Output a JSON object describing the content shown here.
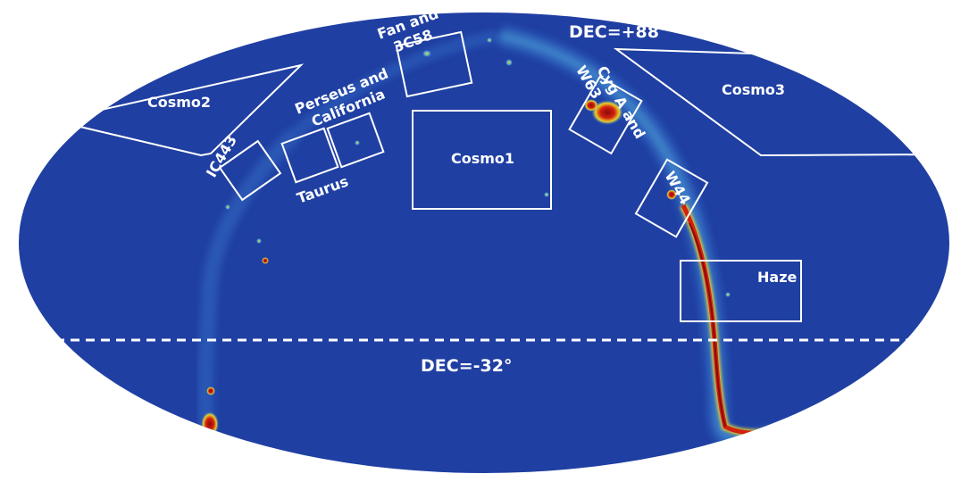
{
  "map": {
    "colors": {
      "background": "#1f3fa2",
      "sky_dark": "#1c3a9a",
      "diffuse": "#3b7ad0",
      "hot_mid": "#e6d32a",
      "hot": "#d4200f",
      "hot_core": "#8a0a0a",
      "annotation": "#ffffff"
    },
    "dec_lines": {
      "north": "DEC=+88°",
      "south": "DEC=-32°"
    },
    "regions": {
      "cosmo1": "Cosmo1",
      "cosmo2": "Cosmo2",
      "cosmo3": "Cosmo3",
      "haze": "Haze",
      "ic443": "IC443",
      "taurus": "Taurus",
      "perseus_california": "Perseus and\nCalifornia",
      "fan_3c58": "Fan and\n3C58",
      "cyg_a_w63": "Cyg A and\nW63",
      "w44": "W44"
    }
  }
}
